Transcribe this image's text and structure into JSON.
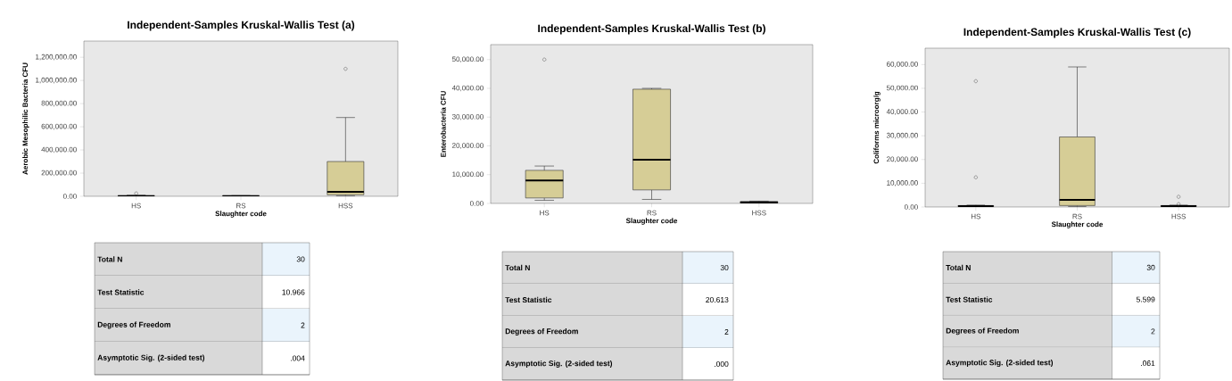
{
  "chart_data": [
    {
      "type": "box",
      "title": "Independent-Samples Kruskal-Wallis Test (a)",
      "xlabel": "Slaughter code",
      "ylabel": "Aerobic Mesophilic Bacteria CFU",
      "categories": [
        "HS",
        "RS",
        "HSS"
      ],
      "series": [
        {
          "color": "#d6cd96",
          "boxes": [
            {
              "low": 0,
              "q1": 500,
              "median": 2000,
              "q3": 5000,
              "high": 10000,
              "outliers": [
                25000
              ]
            },
            {
              "low": 0,
              "q1": 500,
              "median": 2000,
              "q3": 4000,
              "high": 6000
            },
            {
              "low": 5000,
              "q1": 13000,
              "median": 38000,
              "q3": 300000,
              "high": 680000,
              "outliers": [
                1100000
              ]
            }
          ]
        }
      ],
      "ylim": [
        0,
        1340000
      ],
      "yticks": [
        {
          "value": 0,
          "label": "0.00"
        },
        {
          "value": 200000,
          "label": "200,000.00"
        },
        {
          "value": 400000,
          "label": "400,000.00"
        },
        {
          "value": 600000,
          "label": "600,000.00"
        },
        {
          "value": 800000,
          "label": "800,000.00"
        },
        {
          "value": 1000000,
          "label": "1,000,000.00"
        },
        {
          "value": 1200000,
          "label": "1,200,000.00"
        }
      ],
      "annotations": [
        "Total N",
        "30",
        "Test Statistic",
        "10.966",
        "Degrees of Freedom",
        "2",
        "Asymptotic Sig. (2-sided test)",
        ".004"
      ]
    },
    {
      "type": "box",
      "title": "Independent-Samples Kruskal-Wallis Test (b)",
      "xlabel": "Slaughter code",
      "ylabel": "Enterobacteria CFU",
      "categories": [
        "HS",
        "RS",
        "HSS"
      ],
      "series": [
        {
          "color": "#d6cd96",
          "boxes": [
            {
              "low": 1100,
              "q1": 1900,
              "median": 8000,
              "q3": 11500,
              "high": 13000,
              "outliers": [
                50000
              ]
            },
            {
              "low": 1400,
              "q1": 4700,
              "median": 15200,
              "q3": 39700,
              "high": 40000
            },
            {
              "low": 0,
              "q1": 200,
              "median": 400,
              "q3": 600,
              "high": 800
            }
          ]
        }
      ],
      "ylim": [
        0,
        55200
      ],
      "yticks": [
        {
          "value": 0,
          "label": "0.00"
        },
        {
          "value": 10000,
          "label": "10,000.00"
        },
        {
          "value": 20000,
          "label": "20,000.00"
        },
        {
          "value": 30000,
          "label": "30,000.00"
        },
        {
          "value": 40000,
          "label": "40,000.00"
        },
        {
          "value": 50000,
          "label": "50,000.00"
        }
      ],
      "annotations": [
        "Total N",
        "30",
        "Test Statistic",
        "20.613",
        "Degrees of Freedom",
        "2",
        "Asymptotic Sig. (2-sided test)",
        ".000"
      ]
    },
    {
      "type": "box",
      "title": "Independent-Samples Kruskal-Wallis Test (c)",
      "xlabel": "Slaughter code",
      "ylabel": "Coliforms microorg/g",
      "categories": [
        "HS",
        "RS",
        "HSS"
      ],
      "series": [
        {
          "color": "#d6cd96",
          "boxes": [
            {
              "low": 0,
              "q1": 200,
              "median": 400,
              "q3": 600,
              "high": 800,
              "outliers": [
                12500,
                53000
              ]
            },
            {
              "low": 200,
              "q1": 600,
              "median": 3000,
              "q3": 29500,
              "high": 59000
            },
            {
              "low": 0,
              "q1": 200,
              "median": 400,
              "q3": 600,
              "high": 800,
              "outliers": [
                1200,
                4300
              ]
            }
          ]
        }
      ],
      "ylim": [
        0,
        66900
      ],
      "yticks": [
        {
          "value": 0,
          "label": "0.00"
        },
        {
          "value": 10000,
          "label": "10,000.00"
        },
        {
          "value": 20000,
          "label": "20,000.00"
        },
        {
          "value": 30000,
          "label": "30,000.00"
        },
        {
          "value": 40000,
          "label": "40,000.00"
        },
        {
          "value": 50000,
          "label": "50,000.00"
        },
        {
          "value": 60000,
          "label": "60,000.00"
        }
      ],
      "annotations": [
        "Total N",
        "30",
        "Test Statistic",
        "5.599",
        "Degrees of Freedom",
        "2",
        "Asymptotic Sig. (2-sided test)",
        ".061"
      ]
    }
  ]
}
